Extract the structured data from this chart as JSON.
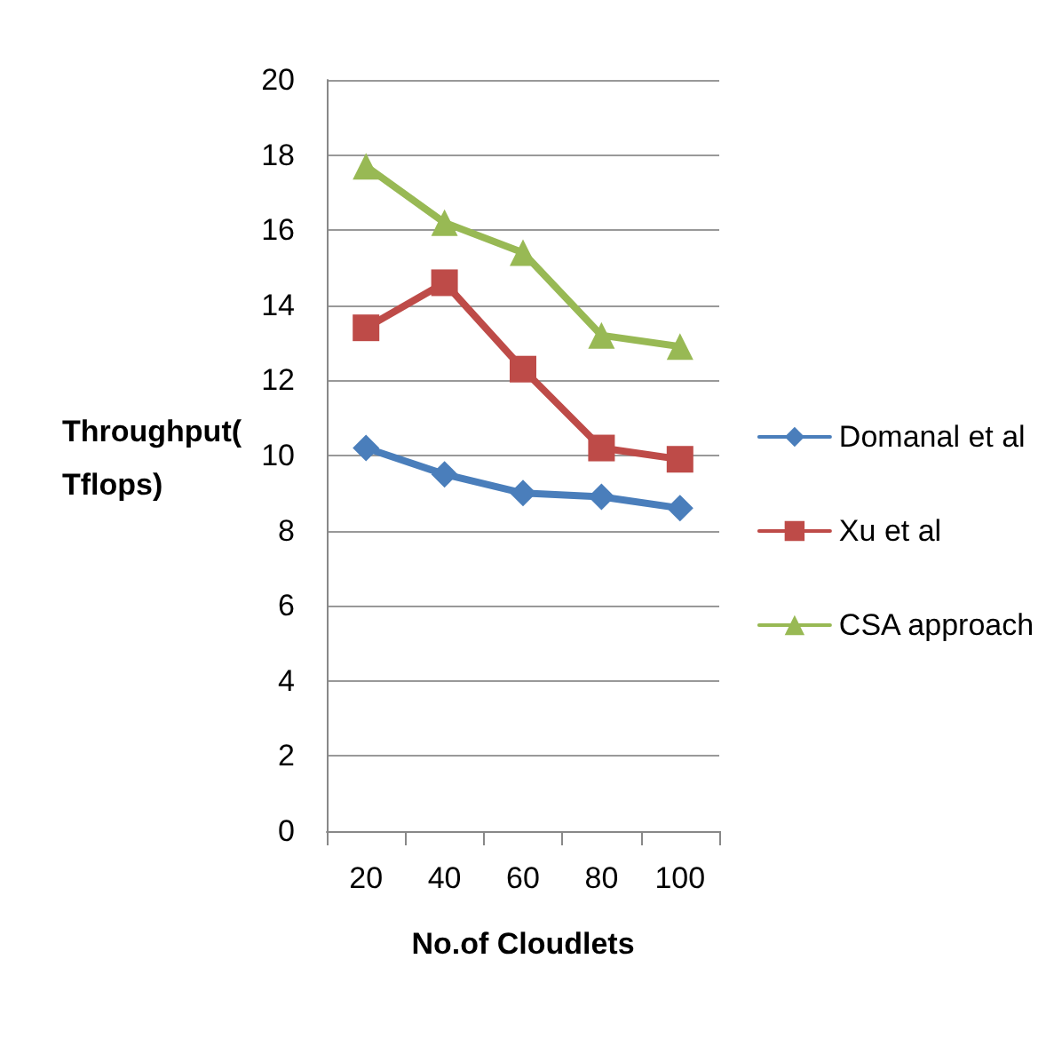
{
  "chart_data": {
    "type": "line",
    "xlabel": "No.of Cloudlets",
    "ylabel": "Throughput(\nTflops)",
    "categories": [
      "20",
      "40",
      "60",
      "80",
      "100"
    ],
    "series": [
      {
        "name": "Domanal et al",
        "color": "#4a7ebb",
        "marker": "diamond",
        "values": [
          10.2,
          9.5,
          9.0,
          8.9,
          8.6
        ]
      },
      {
        "name": "Xu et al",
        "color": "#be4b48",
        "marker": "square",
        "values": [
          13.4,
          14.6,
          12.3,
          10.2,
          9.9
        ]
      },
      {
        "name": "CSA approach",
        "color": "#98b954",
        "marker": "triangle",
        "values": [
          17.7,
          16.2,
          15.4,
          13.2,
          12.9
        ]
      }
    ],
    "ylim": [
      0,
      20
    ],
    "yticks": [
      0,
      2,
      4,
      6,
      8,
      10,
      12,
      14,
      16,
      18,
      20
    ],
    "grid": "y",
    "legend": "right"
  }
}
